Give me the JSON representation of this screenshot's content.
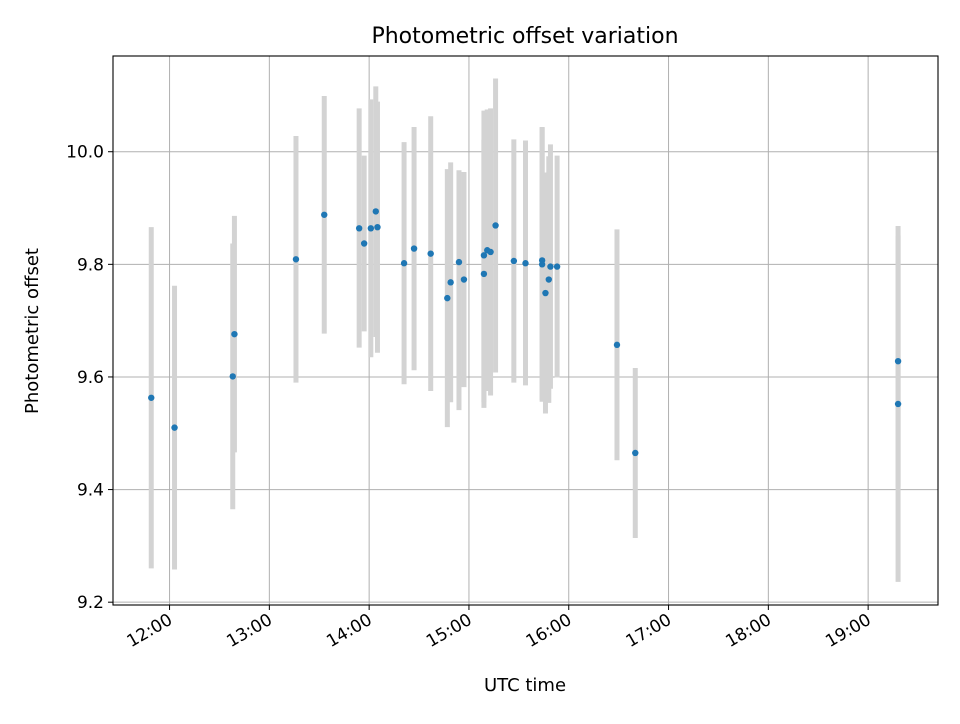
{
  "chart_data": {
    "type": "scatter",
    "title": "Photometric offset variation",
    "xlabel": "UTC time",
    "ylabel": "Photometric offset",
    "xlim": [
      "11:26",
      "19:42"
    ],
    "ylim": [
      9.195,
      10.17
    ],
    "x_ticks": [
      "12:00",
      "13:00",
      "14:00",
      "15:00",
      "16:00",
      "17:00",
      "18:00",
      "19:00"
    ],
    "y_ticks": [
      9.2,
      9.4,
      9.6,
      9.8,
      10.0
    ],
    "y_tick_labels": [
      "9.2",
      "9.4",
      "9.6",
      "9.8",
      "10.0"
    ],
    "grid": true,
    "marker_color": "#1f77b4",
    "errorbar_color": "#d3d3d3",
    "points": [
      {
        "t": "11:49",
        "y": 9.563,
        "lo": 9.26,
        "hi": 9.866
      },
      {
        "t": "12:03",
        "y": 9.51,
        "lo": 9.258,
        "hi": 9.762
      },
      {
        "t": "12:38",
        "y": 9.601,
        "lo": 9.365,
        "hi": 9.837
      },
      {
        "t": "12:39",
        "y": 9.676,
        "lo": 9.466,
        "hi": 9.886
      },
      {
        "t": "13:16",
        "y": 9.809,
        "lo": 9.59,
        "hi": 10.028
      },
      {
        "t": "13:33",
        "y": 9.888,
        "lo": 9.677,
        "hi": 10.099
      },
      {
        "t": "13:54",
        "y": 9.864,
        "lo": 9.652,
        "hi": 10.077
      },
      {
        "t": "13:57",
        "y": 9.837,
        "lo": 9.681,
        "hi": 9.993
      },
      {
        "t": "14:01",
        "y": 9.864,
        "lo": 9.635,
        "hi": 10.093
      },
      {
        "t": "14:04",
        "y": 9.894,
        "lo": 9.671,
        "hi": 10.116
      },
      {
        "t": "14:05",
        "y": 9.866,
        "lo": 9.643,
        "hi": 10.089
      },
      {
        "t": "14:21",
        "y": 9.802,
        "lo": 9.587,
        "hi": 10.017
      },
      {
        "t": "14:27",
        "y": 9.828,
        "lo": 9.612,
        "hi": 10.044
      },
      {
        "t": "14:37",
        "y": 9.819,
        "lo": 9.575,
        "hi": 10.063
      },
      {
        "t": "14:47",
        "y": 9.74,
        "lo": 9.511,
        "hi": 9.969
      },
      {
        "t": "14:49",
        "y": 9.768,
        "lo": 9.555,
        "hi": 9.981
      },
      {
        "t": "14:54",
        "y": 9.804,
        "lo": 9.541,
        "hi": 9.967
      },
      {
        "t": "14:57",
        "y": 9.773,
        "lo": 9.582,
        "hi": 9.964
      },
      {
        "t": "15:09",
        "y": 9.783,
        "lo": 9.545,
        "hi": 10.021
      },
      {
        "t": "15:09",
        "y": 9.816,
        "lo": 9.555,
        "hi": 10.073
      },
      {
        "t": "15:11",
        "y": 9.825,
        "lo": 9.575,
        "hi": 10.075
      },
      {
        "t": "15:13",
        "y": 9.822,
        "lo": 9.567,
        "hi": 10.077
      },
      {
        "t": "15:16",
        "y": 9.869,
        "lo": 9.608,
        "hi": 10.13
      },
      {
        "t": "15:27",
        "y": 9.806,
        "lo": 9.59,
        "hi": 10.022
      },
      {
        "t": "15:34",
        "y": 9.802,
        "lo": 9.585,
        "hi": 10.02
      },
      {
        "t": "15:44",
        "y": 9.807,
        "lo": 9.559,
        "hi": 10.043
      },
      {
        "t": "15:44",
        "y": 9.8,
        "lo": 9.556,
        "hi": 10.044
      },
      {
        "t": "15:46",
        "y": 9.749,
        "lo": 9.535,
        "hi": 9.963
      },
      {
        "t": "15:48",
        "y": 9.773,
        "lo": 9.554,
        "hi": 9.992
      },
      {
        "t": "15:49",
        "y": 9.796,
        "lo": 9.579,
        "hi": 10.013
      },
      {
        "t": "15:53",
        "y": 9.796,
        "lo": 9.599,
        "hi": 9.993
      },
      {
        "t": "16:29",
        "y": 9.657,
        "lo": 9.452,
        "hi": 9.862
      },
      {
        "t": "16:40",
        "y": 9.465,
        "lo": 9.314,
        "hi": 9.616
      },
      {
        "t": "19:18",
        "y": 9.628,
        "lo": 9.405,
        "hi": 9.851
      },
      {
        "t": "19:18",
        "y": 9.552,
        "lo": 9.236,
        "hi": 9.868
      }
    ]
  }
}
